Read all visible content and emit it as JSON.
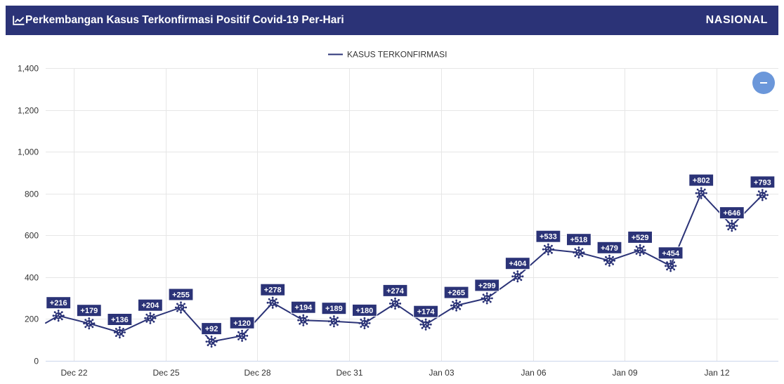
{
  "header": {
    "title_icon": "line-chart-icon",
    "title": "Perkembangan Kasus Terkonfirmasi Positif Covid-19 Per-Hari",
    "region": "NASIONAL",
    "background": "#2b3377"
  },
  "controls": {
    "minus_button_icon": "minus-icon",
    "minus_button_color": "#6b97da"
  },
  "chart_data": {
    "type": "line",
    "x": [
      "Dec 21",
      "Dec 22",
      "Dec 23",
      "Dec 24",
      "Dec 25",
      "Dec 26",
      "Dec 27",
      "Dec 28",
      "Dec 29",
      "Dec 30",
      "Dec 31",
      "Jan 01",
      "Jan 02",
      "Jan 03",
      "Jan 04",
      "Jan 05",
      "Jan 06",
      "Jan 07",
      "Jan 08",
      "Jan 09",
      "Jan 10",
      "Jan 11",
      "Jan 12",
      "Jan 13"
    ],
    "series": [
      {
        "name": "KASUS TERKONFIRMASI",
        "values": [
          216,
          179,
          136,
          204,
          255,
          92,
          120,
          278,
          194,
          189,
          180,
          274,
          174,
          265,
          299,
          404,
          533,
          518,
          479,
          529,
          454,
          802,
          646,
          793
        ],
        "data_labels": [
          "+216",
          "+179",
          "+136",
          "+204",
          "+255",
          "+92",
          "+120",
          "+278",
          "+194",
          "+189",
          "+180",
          "+274",
          "+174",
          "+265",
          "+299",
          "+404",
          "+533",
          "+518",
          "+479",
          "+529",
          "+454",
          "+802",
          "+646",
          "+793"
        ],
        "color": "#2b3377",
        "marker_icon": "virus-icon"
      }
    ],
    "x_tick_labels": [
      "Dec 22",
      "Dec 25",
      "Dec 28",
      "Dec 31",
      "Jan 03",
      "Jan 06",
      "Jan 09",
      "Jan 12"
    ],
    "y_ticks": [
      0,
      200,
      400,
      600,
      800,
      1000,
      1200,
      1400
    ],
    "y_tick_labels": [
      "0",
      "200",
      "400",
      "600",
      "800",
      "1,000",
      "1,200",
      "1,400"
    ],
    "ylim": [
      0,
      1400
    ],
    "grid": true,
    "legend": "top-center"
  }
}
